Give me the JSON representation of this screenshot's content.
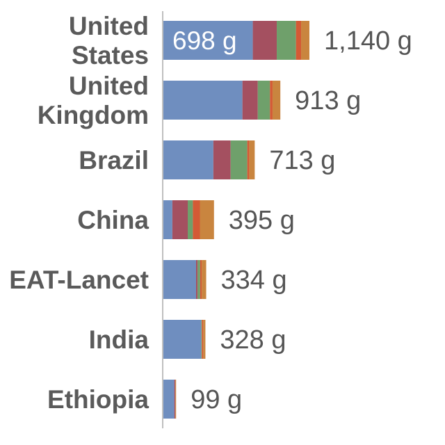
{
  "chart_data": {
    "type": "bar",
    "orientation": "horizontal",
    "stacked": true,
    "unit": "g",
    "categories": [
      "United States",
      "United Kingdom",
      "Brazil",
      "China",
      "EAT-Lancet",
      "India",
      "Ethiopia"
    ],
    "category_lines": [
      [
        "United",
        "States"
      ],
      [
        "United",
        "Kingdom"
      ],
      [
        "Brazil"
      ],
      [
        "China"
      ],
      [
        "EAT-Lancet"
      ],
      [
        "India"
      ],
      [
        "Ethiopia"
      ]
    ],
    "series": [
      {
        "color": "#6f8ebf",
        "values": [
          698,
          617,
          390,
          70,
          255,
          295,
          85
        ]
      },
      {
        "color": "#a45060",
        "values": [
          187,
          120,
          135,
          120,
          12,
          0,
          8
        ]
      },
      {
        "color": "#6fa06b",
        "values": [
          150,
          95,
          130,
          40,
          20,
          5,
          0
        ]
      },
      {
        "color": "#d45a35",
        "values": [
          40,
          20,
          15,
          55,
          12,
          10,
          0
        ]
      },
      {
        "color": "#c9853f",
        "values": [
          65,
          61,
          43,
          110,
          35,
          18,
          6
        ]
      }
    ],
    "totals": [
      1140,
      913,
      713,
      395,
      334,
      328,
      99
    ],
    "total_labels": [
      "1,140 g",
      "913 g",
      "713 g",
      "395 g",
      "334 g",
      "328 g",
      "99 g"
    ],
    "inner_label": "698 g",
    "xlim": [
      0,
      1140
    ],
    "grid": false,
    "legend": "none"
  }
}
